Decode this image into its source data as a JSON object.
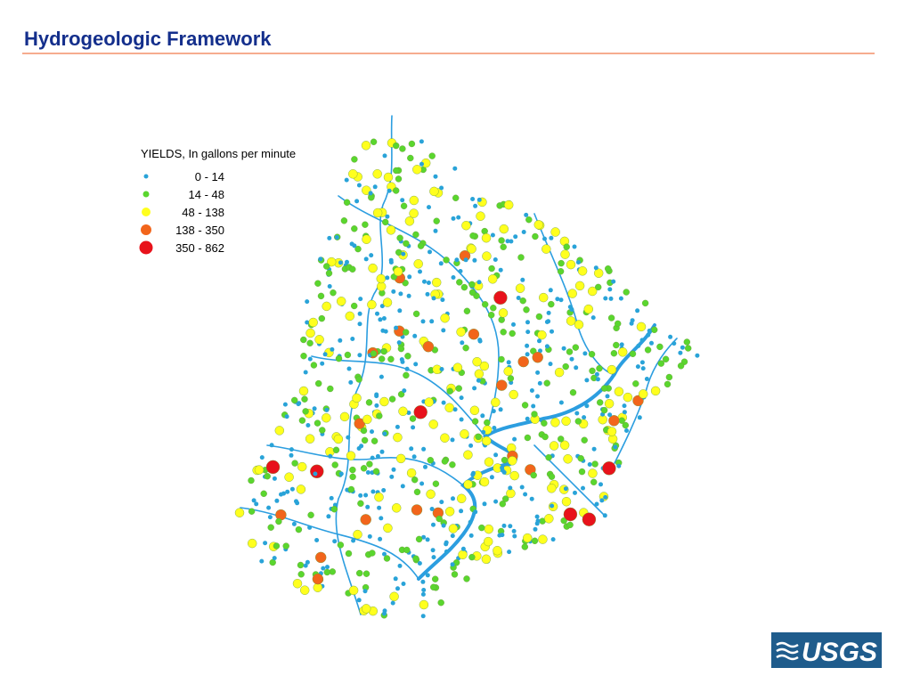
{
  "header": {
    "title": "Hydrogeologic Framework"
  },
  "legend": {
    "title": "YIELDS, In gallons per minute",
    "items": [
      {
        "label": "0 -   14",
        "color": "#29a3d8"
      },
      {
        "label": "14 -   48",
        "color": "#5ad62e"
      },
      {
        "label": "48 - 138",
        "color": "#ffff1e"
      },
      {
        "label": "138 - 350",
        "color": "#f2651b"
      },
      {
        "label": "350 - 862",
        "color": "#e8121b"
      }
    ]
  },
  "logo": {
    "text": "USGS"
  }
}
